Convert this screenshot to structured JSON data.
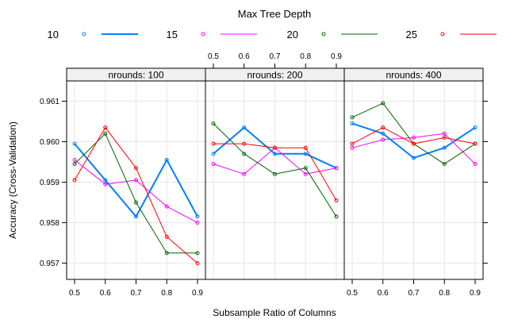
{
  "chart_data": {
    "type": "line",
    "legend_title": "Max Tree Depth",
    "legend_position": "top",
    "xlabel": "Subsample Ratio of Columns",
    "ylabel": "Accuracy (Cross-Validation)",
    "x": [
      0.5,
      0.6,
      0.7,
      0.8,
      0.9
    ],
    "x_tick_labels": [
      "0.5",
      "0.6",
      "0.7",
      "0.8",
      "0.9"
    ],
    "ylim": [
      0.9566,
      0.9615
    ],
    "y_ticks": [
      0.957,
      0.958,
      0.959,
      0.96,
      0.961
    ],
    "y_tick_labels": [
      "0.957",
      "0.958",
      "0.959",
      "0.960",
      "0.961"
    ],
    "grid": true,
    "series_styles": [
      {
        "name": "10",
        "color": "#0080ff",
        "width": 2
      },
      {
        "name": "15",
        "color": "#ff00ff",
        "width": 1
      },
      {
        "name": "20",
        "color": "#006400",
        "width": 1
      },
      {
        "name": "25",
        "color": "#ff0000",
        "width": 1
      }
    ],
    "panels": [
      {
        "strip": "nrounds: 100",
        "series": [
          {
            "name": "10",
            "values": [
              0.95995,
              0.95905,
              0.95815,
              0.95955,
              0.95815
            ]
          },
          {
            "name": "15",
            "values": [
              0.95955,
              0.95895,
              0.95905,
              0.9584,
              0.958
            ]
          },
          {
            "name": "20",
            "values": [
              0.95945,
              0.9602,
              0.9585,
              0.95725,
              0.95725
            ]
          },
          {
            "name": "25",
            "values": [
              0.95905,
              0.96035,
              0.95935,
              0.95765,
              0.957
            ]
          }
        ]
      },
      {
        "strip": "nrounds: 200",
        "series": [
          {
            "name": "10",
            "values": [
              0.9597,
              0.96035,
              0.9597,
              0.9597,
              0.95935
            ]
          },
          {
            "name": "15",
            "values": [
              0.95945,
              0.9592,
              0.95985,
              0.9592,
              0.95935
            ]
          },
          {
            "name": "20",
            "values": [
              0.96045,
              0.9597,
              0.9592,
              0.95935,
              0.95815
            ]
          },
          {
            "name": "25",
            "values": [
              0.95995,
              0.95995,
              0.95985,
              0.95985,
              0.95855
            ]
          }
        ]
      },
      {
        "strip": "nrounds: 400",
        "series": [
          {
            "name": "10",
            "values": [
              0.96045,
              0.9602,
              0.9596,
              0.95985,
              0.96035
            ]
          },
          {
            "name": "15",
            "values": [
              0.95985,
              0.96005,
              0.9601,
              0.9602,
              0.95945
            ]
          },
          {
            "name": "20",
            "values": [
              0.9606,
              0.96095,
              0.95995,
              0.95945,
              0.95995
            ]
          },
          {
            "name": "25",
            "values": [
              0.95995,
              0.96035,
              0.95995,
              0.9601,
              0.95995
            ]
          }
        ]
      }
    ]
  }
}
